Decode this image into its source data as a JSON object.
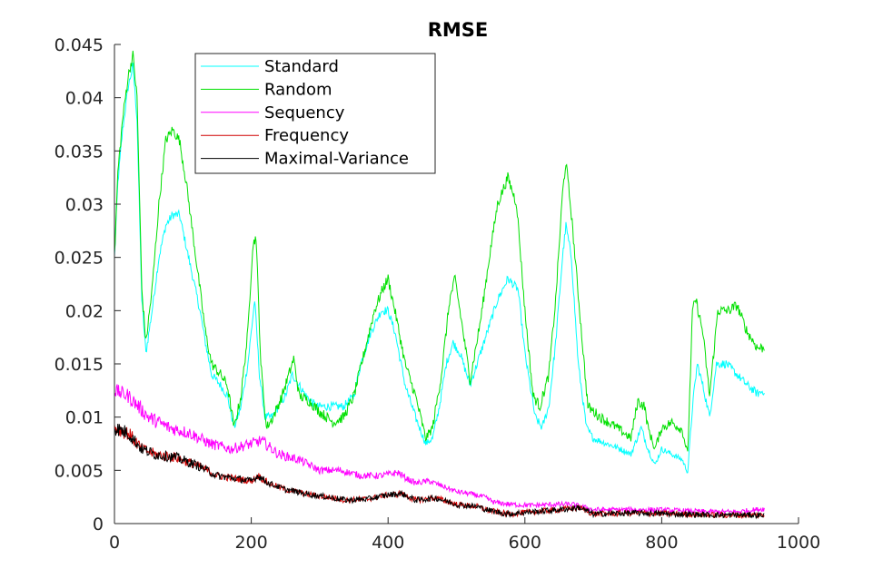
{
  "chart_data": {
    "type": "line",
    "title": "RMSE",
    "xlabel": "",
    "ylabel": "",
    "xlim": [
      0,
      1000
    ],
    "ylim": [
      0,
      0.045
    ],
    "xticks": [
      0,
      200,
      400,
      600,
      800,
      1000
    ],
    "xtick_labels": [
      "0",
      "200",
      "400",
      "600",
      "800",
      "1000"
    ],
    "yticks": [
      0,
      0.005,
      0.01,
      0.015,
      0.02,
      0.025,
      0.03,
      0.035,
      0.04,
      0.045
    ],
    "ytick_labels": [
      "0",
      "0.005",
      "0.01",
      "0.015",
      "0.02",
      "0.025",
      "0.03",
      "0.035",
      "0.04",
      "0.045"
    ],
    "grid": false,
    "legend_position": "top-left inside",
    "series": [
      {
        "name": "Standard",
        "color": "#00ffff",
        "noise": 0.0004,
        "points": [
          [
            0,
            0.025
          ],
          [
            5,
            0.032
          ],
          [
            12,
            0.037
          ],
          [
            20,
            0.041
          ],
          [
            27,
            0.043
          ],
          [
            33,
            0.038
          ],
          [
            40,
            0.021
          ],
          [
            46,
            0.016
          ],
          [
            55,
            0.02
          ],
          [
            65,
            0.025
          ],
          [
            75,
            0.028
          ],
          [
            85,
            0.029
          ],
          [
            95,
            0.029
          ],
          [
            105,
            0.026
          ],
          [
            115,
            0.023
          ],
          [
            125,
            0.02
          ],
          [
            133,
            0.017
          ],
          [
            142,
            0.014
          ],
          [
            155,
            0.013
          ],
          [
            165,
            0.012
          ],
          [
            175,
            0.009
          ],
          [
            185,
            0.011
          ],
          [
            195,
            0.015
          ],
          [
            205,
            0.021
          ],
          [
            212,
            0.014
          ],
          [
            220,
            0.01
          ],
          [
            230,
            0.01
          ],
          [
            240,
            0.011
          ],
          [
            250,
            0.012
          ],
          [
            260,
            0.014
          ],
          [
            270,
            0.013
          ],
          [
            280,
            0.012
          ],
          [
            295,
            0.011
          ],
          [
            315,
            0.011
          ],
          [
            335,
            0.011
          ],
          [
            350,
            0.012
          ],
          [
            360,
            0.015
          ],
          [
            375,
            0.018
          ],
          [
            390,
            0.02
          ],
          [
            400,
            0.02
          ],
          [
            410,
            0.018
          ],
          [
            425,
            0.013
          ],
          [
            440,
            0.01
          ],
          [
            455,
            0.0075
          ],
          [
            465,
            0.008
          ],
          [
            475,
            0.011
          ],
          [
            485,
            0.015
          ],
          [
            495,
            0.017
          ],
          [
            505,
            0.016
          ],
          [
            520,
            0.013
          ],
          [
            530,
            0.015
          ],
          [
            545,
            0.018
          ],
          [
            560,
            0.021
          ],
          [
            575,
            0.023
          ],
          [
            590,
            0.022
          ],
          [
            600,
            0.016
          ],
          [
            615,
            0.01
          ],
          [
            625,
            0.009
          ],
          [
            635,
            0.011
          ],
          [
            645,
            0.017
          ],
          [
            655,
            0.025
          ],
          [
            660,
            0.028
          ],
          [
            668,
            0.025
          ],
          [
            678,
            0.015
          ],
          [
            690,
            0.009
          ],
          [
            700,
            0.008
          ],
          [
            720,
            0.0075
          ],
          [
            740,
            0.007
          ],
          [
            755,
            0.0065
          ],
          [
            770,
            0.009
          ],
          [
            780,
            0.007
          ],
          [
            790,
            0.0055
          ],
          [
            800,
            0.007
          ],
          [
            815,
            0.0065
          ],
          [
            830,
            0.006
          ],
          [
            838,
            0.0048
          ],
          [
            845,
            0.011
          ],
          [
            852,
            0.015
          ],
          [
            860,
            0.013
          ],
          [
            870,
            0.01
          ],
          [
            880,
            0.015
          ],
          [
            895,
            0.015
          ],
          [
            910,
            0.014
          ],
          [
            925,
            0.013
          ],
          [
            940,
            0.0122
          ],
          [
            950,
            0.0125
          ]
        ]
      },
      {
        "name": "Random",
        "color": "#00e000",
        "noise": 0.0005,
        "points": [
          [
            0,
            0.025
          ],
          [
            5,
            0.033
          ],
          [
            12,
            0.038
          ],
          [
            20,
            0.042
          ],
          [
            27,
            0.044
          ],
          [
            33,
            0.04
          ],
          [
            40,
            0.022
          ],
          [
            46,
            0.017
          ],
          [
            55,
            0.022
          ],
          [
            65,
            0.03
          ],
          [
            75,
            0.036
          ],
          [
            85,
            0.037
          ],
          [
            95,
            0.036
          ],
          [
            105,
            0.032
          ],
          [
            115,
            0.027
          ],
          [
            125,
            0.022
          ],
          [
            133,
            0.018
          ],
          [
            142,
            0.015
          ],
          [
            155,
            0.014
          ],
          [
            165,
            0.013
          ],
          [
            175,
            0.009
          ],
          [
            185,
            0.012
          ],
          [
            195,
            0.018
          ],
          [
            202,
            0.026
          ],
          [
            207,
            0.027
          ],
          [
            214,
            0.015
          ],
          [
            222,
            0.009
          ],
          [
            232,
            0.01
          ],
          [
            245,
            0.012
          ],
          [
            255,
            0.014
          ],
          [
            262,
            0.0155
          ],
          [
            270,
            0.012
          ],
          [
            285,
            0.0115
          ],
          [
            300,
            0.0105
          ],
          [
            320,
            0.0095
          ],
          [
            335,
            0.01
          ],
          [
            350,
            0.012
          ],
          [
            365,
            0.016
          ],
          [
            380,
            0.02
          ],
          [
            392,
            0.022
          ],
          [
            400,
            0.023
          ],
          [
            410,
            0.02
          ],
          [
            425,
            0.015
          ],
          [
            440,
            0.012
          ],
          [
            455,
            0.008
          ],
          [
            465,
            0.009
          ],
          [
            478,
            0.014
          ],
          [
            490,
            0.021
          ],
          [
            498,
            0.023
          ],
          [
            505,
            0.02
          ],
          [
            520,
            0.0135
          ],
          [
            535,
            0.019
          ],
          [
            548,
            0.025
          ],
          [
            560,
            0.03
          ],
          [
            575,
            0.0325
          ],
          [
            588,
            0.03
          ],
          [
            600,
            0.02
          ],
          [
            612,
            0.012
          ],
          [
            622,
            0.011
          ],
          [
            635,
            0.014
          ],
          [
            645,
            0.021
          ],
          [
            655,
            0.031
          ],
          [
            660,
            0.034
          ],
          [
            668,
            0.029
          ],
          [
            680,
            0.02
          ],
          [
            692,
            0.011
          ],
          [
            710,
            0.01
          ],
          [
            735,
            0.009
          ],
          [
            755,
            0.008
          ],
          [
            765,
            0.0115
          ],
          [
            775,
            0.011
          ],
          [
            780,
            0.009
          ],
          [
            790,
            0.007
          ],
          [
            800,
            0.009
          ],
          [
            815,
            0.0095
          ],
          [
            830,
            0.0088
          ],
          [
            838,
            0.0065
          ],
          [
            845,
            0.02
          ],
          [
            850,
            0.021
          ],
          [
            860,
            0.018
          ],
          [
            870,
            0.012
          ],
          [
            882,
            0.02
          ],
          [
            898,
            0.02
          ],
          [
            910,
            0.0205
          ],
          [
            925,
            0.018
          ],
          [
            940,
            0.0165
          ],
          [
            950,
            0.0165
          ]
        ]
      },
      {
        "name": "Sequency",
        "color": "#ff00ff",
        "noise": 0.0007,
        "points": [
          [
            0,
            0.0125
          ],
          [
            20,
            0.012
          ],
          [
            50,
            0.01
          ],
          [
            80,
            0.009
          ],
          [
            110,
            0.0085
          ],
          [
            140,
            0.0075
          ],
          [
            170,
            0.007
          ],
          [
            200,
            0.0075
          ],
          [
            215,
            0.0078
          ],
          [
            240,
            0.0065
          ],
          [
            270,
            0.006
          ],
          [
            300,
            0.005
          ],
          [
            330,
            0.005
          ],
          [
            360,
            0.0045
          ],
          [
            390,
            0.0045
          ],
          [
            415,
            0.0048
          ],
          [
            425,
            0.0043
          ],
          [
            440,
            0.0038
          ],
          [
            460,
            0.004
          ],
          [
            480,
            0.0035
          ],
          [
            500,
            0.003
          ],
          [
            520,
            0.0028
          ],
          [
            540,
            0.0025
          ],
          [
            555,
            0.002
          ],
          [
            580,
            0.0018
          ],
          [
            610,
            0.0017
          ],
          [
            640,
            0.0018
          ],
          [
            670,
            0.0018
          ],
          [
            700,
            0.0013
          ],
          [
            730,
            0.0013
          ],
          [
            760,
            0.0013
          ],
          [
            790,
            0.0013
          ],
          [
            830,
            0.0012
          ],
          [
            870,
            0.0011
          ],
          [
            910,
            0.0011
          ],
          [
            950,
            0.0014
          ]
        ]
      },
      {
        "name": "Frequency",
        "color": "#d00000",
        "noise": 0.0008,
        "points": [
          [
            0,
            0.009
          ],
          [
            20,
            0.0085
          ],
          [
            40,
            0.007
          ],
          [
            60,
            0.0065
          ],
          [
            90,
            0.0062
          ],
          [
            120,
            0.0055
          ],
          [
            150,
            0.0045
          ],
          [
            180,
            0.0042
          ],
          [
            200,
            0.004
          ],
          [
            210,
            0.0045
          ],
          [
            225,
            0.0038
          ],
          [
            250,
            0.0032
          ],
          [
            280,
            0.0028
          ],
          [
            310,
            0.0025
          ],
          [
            340,
            0.0022
          ],
          [
            370,
            0.0023
          ],
          [
            400,
            0.0027
          ],
          [
            420,
            0.0028
          ],
          [
            440,
            0.0022
          ],
          [
            470,
            0.0024
          ],
          [
            500,
            0.0018
          ],
          [
            530,
            0.0016
          ],
          [
            550,
            0.0012
          ],
          [
            575,
            0.0009
          ],
          [
            610,
            0.0011
          ],
          [
            650,
            0.0013
          ],
          [
            680,
            0.0015
          ],
          [
            700,
            0.0009
          ],
          [
            760,
            0.001
          ],
          [
            820,
            0.0009
          ],
          [
            880,
            0.0008
          ],
          [
            950,
            0.0008
          ]
        ]
      },
      {
        "name": "Maximal-Variance",
        "color": "#000000",
        "noise": 0.0008,
        "points": [
          [
            0,
            0.009
          ],
          [
            20,
            0.0085
          ],
          [
            40,
            0.007
          ],
          [
            60,
            0.0065
          ],
          [
            90,
            0.0062
          ],
          [
            120,
            0.0055
          ],
          [
            150,
            0.0045
          ],
          [
            180,
            0.0042
          ],
          [
            200,
            0.004
          ],
          [
            210,
            0.0045
          ],
          [
            225,
            0.0038
          ],
          [
            250,
            0.0032
          ],
          [
            280,
            0.0028
          ],
          [
            310,
            0.0025
          ],
          [
            340,
            0.0022
          ],
          [
            370,
            0.0023
          ],
          [
            400,
            0.0027
          ],
          [
            420,
            0.0028
          ],
          [
            440,
            0.0022
          ],
          [
            470,
            0.0024
          ],
          [
            500,
            0.0018
          ],
          [
            530,
            0.0016
          ],
          [
            550,
            0.0012
          ],
          [
            575,
            0.0009
          ],
          [
            610,
            0.0011
          ],
          [
            650,
            0.0013
          ],
          [
            680,
            0.0015
          ],
          [
            700,
            0.0009
          ],
          [
            760,
            0.001
          ],
          [
            820,
            0.0009
          ],
          [
            880,
            0.0008
          ],
          [
            950,
            0.0008
          ]
        ]
      }
    ]
  }
}
